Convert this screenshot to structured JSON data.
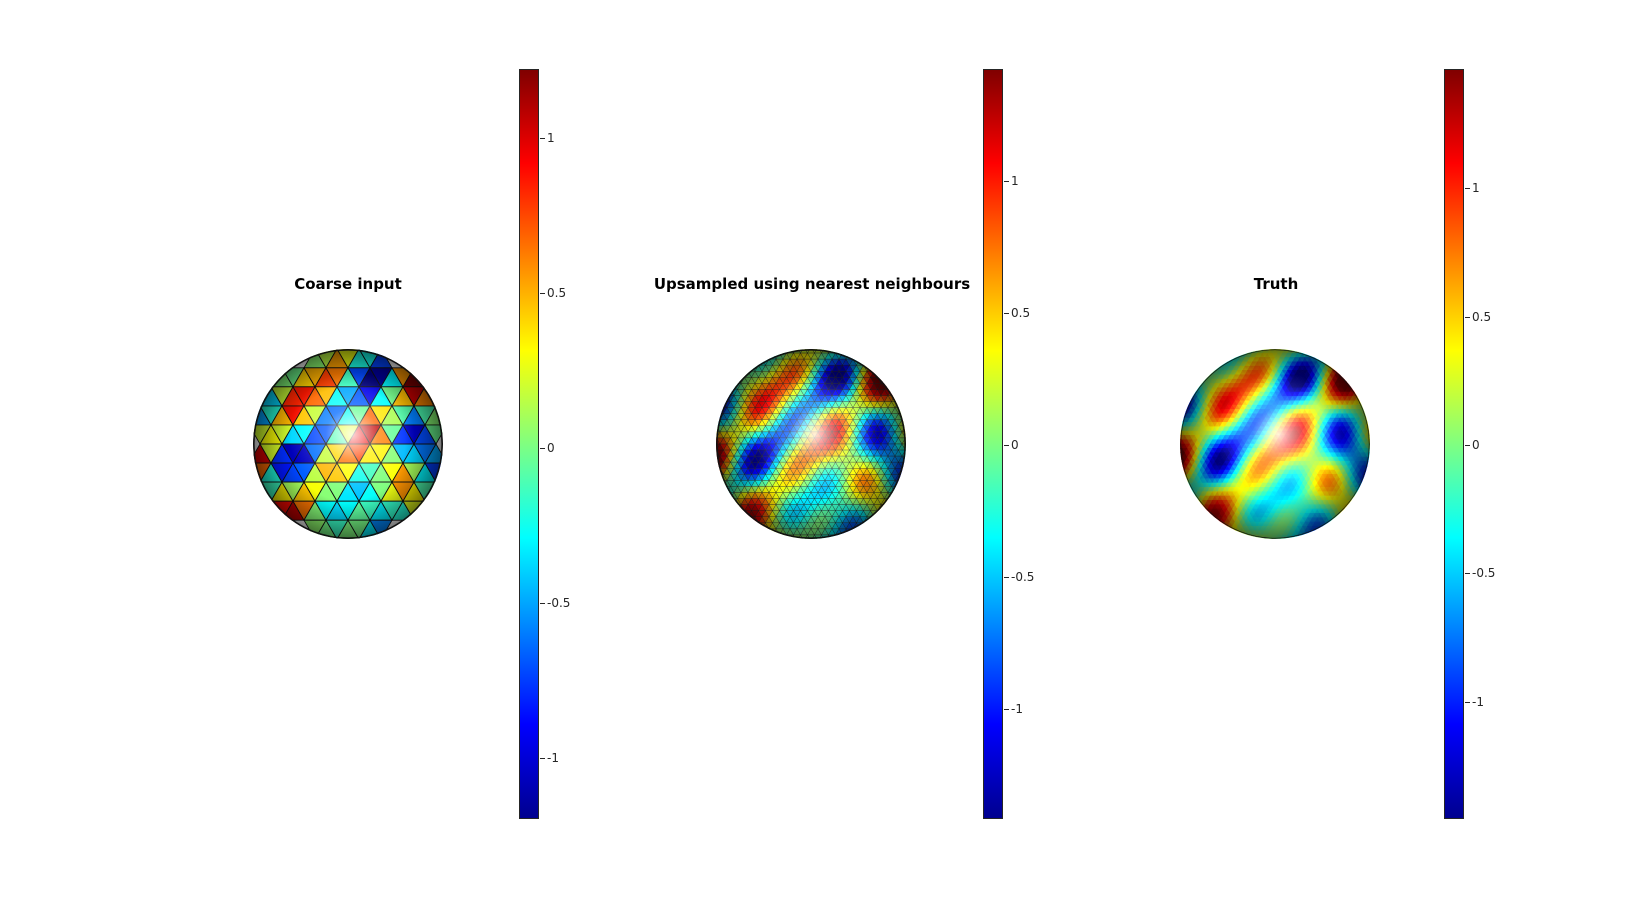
{
  "figure": {
    "panels": [
      {
        "id": "coarse",
        "title": "Coarse input",
        "style": "coarse-facets",
        "colorbar": {
          "min": -1.2,
          "max": 1.22,
          "ticks": [
            1,
            0.5,
            0,
            -0.5,
            -1
          ],
          "tick_labels": [
            "1",
            "0.5",
            "0",
            "-0.5",
            "-1"
          ]
        }
      },
      {
        "id": "nearest",
        "title": "Upsampled using nearest neighbours",
        "style": "fine-facets",
        "colorbar": {
          "min": -1.42,
          "max": 1.42,
          "ticks": [
            1,
            0.5,
            0,
            -0.5,
            -1
          ],
          "tick_labels": [
            "1",
            "0.5",
            "0",
            "-0.5",
            "-1"
          ]
        }
      },
      {
        "id": "truth",
        "title": "Truth",
        "style": "smooth",
        "colorbar": {
          "min": -1.46,
          "max": 1.46,
          "ticks": [
            1,
            0.5,
            0,
            -0.5,
            -1
          ],
          "tick_labels": [
            "1",
            "0.5",
            "0",
            "-0.5",
            "-1"
          ]
        }
      }
    ],
    "colormap": "jet"
  }
}
